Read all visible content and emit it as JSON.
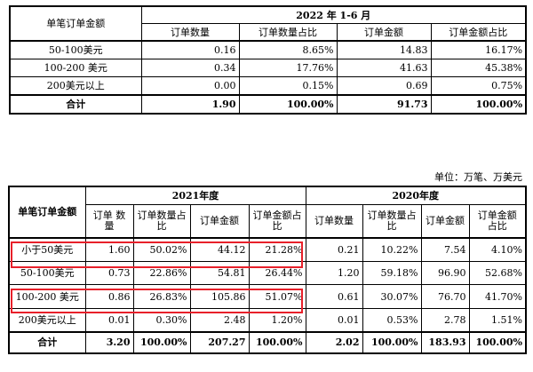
{
  "table1": {
    "corner": "单笔订单金额",
    "period": "2022 年 1-6 月",
    "columns": [
      "订单数量",
      "订单数量占比",
      "订单金额",
      "订单金额占比"
    ],
    "rows": [
      {
        "label": "50-100美元",
        "v": [
          "0.16",
          "8.65%",
          "14.83",
          "16.17%"
        ]
      },
      {
        "label": "100-200 美元",
        "v": [
          "0.34",
          "17.76%",
          "41.63",
          "45.38%"
        ]
      },
      {
        "label": "200美元以上",
        "v": [
          "0.00",
          "0.15%",
          "0.69",
          "0.75%"
        ]
      }
    ],
    "total": {
      "label": "合计",
      "v": [
        "1.90",
        "100.00%",
        "91.73",
        "100.00%"
      ]
    }
  },
  "unit": "单位：万笔、万美元",
  "table2": {
    "corner": "单笔订单金额",
    "period_a": "2021年度",
    "period_b": "2020年度",
    "columns": [
      "订单 数量",
      "订单数量占比",
      "订单金额",
      "订单金额占比",
      "订单数量",
      "订单数量占比",
      "订单金额",
      "订单金额 占比"
    ],
    "rows": [
      {
        "label": "小于50美元",
        "v": [
          "1.60",
          "50.02%",
          "44.12",
          "21.28%",
          "0.21",
          "10.22%",
          "7.54",
          "4.10%"
        ]
      },
      {
        "label": "50-100美元",
        "v": [
          "0.73",
          "22.86%",
          "54.81",
          "26.44%",
          "1.20",
          "59.18%",
          "96.90",
          "52.68%"
        ]
      },
      {
        "label": "100-200 美元",
        "v": [
          "0.86",
          "26.83%",
          "105.86",
          "51.07%",
          "0.61",
          "30.07%",
          "76.70",
          "41.70%"
        ]
      },
      {
        "label": "200美元以上",
        "v": [
          "0.01",
          "0.30%",
          "2.48",
          "1.20%",
          "0.01",
          "0.53%",
          "2.78",
          "1.51%"
        ]
      }
    ],
    "total": {
      "label": "合计",
      "v": [
        "3.20",
        "100.00%",
        "207.27",
        "100.00%",
        "2.02",
        "100.00%",
        "183.93",
        "100.00%"
      ]
    }
  },
  "colors": {
    "highlight": "#e8202a",
    "border": "#000000"
  }
}
